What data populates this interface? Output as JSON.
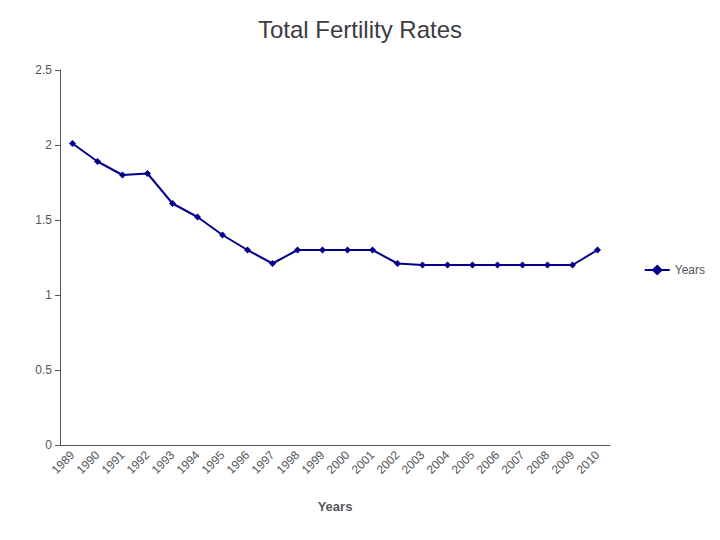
{
  "chart_data": {
    "type": "line",
    "title": "Total Fertility Rates",
    "xlabel": "Years",
    "categories": [
      "1989",
      "1990",
      "1991",
      "1992",
      "1993",
      "1994",
      "1995",
      "1996",
      "1997",
      "1998",
      "1999",
      "2000",
      "2001",
      "2002",
      "2003",
      "2004",
      "2005",
      "2006",
      "2007",
      "2008",
      "2009",
      "2010"
    ],
    "series": [
      {
        "name": "Years",
        "color": "#00008B",
        "marker": "diamond",
        "line_style": "solid",
        "values": [
          2.01,
          1.89,
          1.8,
          1.81,
          1.61,
          1.52,
          1.4,
          1.3,
          1.21,
          1.3,
          1.3,
          1.3,
          1.3,
          1.21,
          1.2,
          1.2,
          1.2,
          1.2,
          1.2,
          1.2,
          1.2,
          1.3
        ]
      }
    ],
    "ylim": [
      0,
      2.5
    ],
    "yticks": [
      0,
      0.5,
      1,
      1.5,
      2,
      2.5
    ],
    "grid": false,
    "legend": "right"
  }
}
